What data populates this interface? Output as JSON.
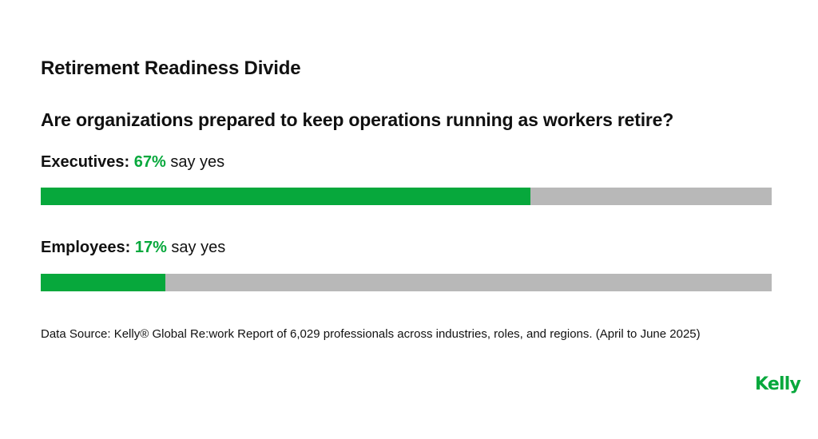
{
  "colors": {
    "accent": "#07a83c",
    "track": "#b8b8b8",
    "text": "#111111"
  },
  "logo": {
    "text": "Kelly"
  },
  "source": "Data Source: Kelly® Global Re:work Report of 6,029 professionals across industries, roles, and regions. (April to June 2025)",
  "chart_data": {
    "type": "bar",
    "orientation": "horizontal",
    "title": "Retirement Readiness Divide",
    "subtitle": "Are organizations prepared to keep operations running as workers retire?",
    "xlim": [
      0,
      100
    ],
    "grid": false,
    "categories": [
      "Executives",
      "Employees"
    ],
    "values": [
      67,
      17
    ],
    "rows": [
      {
        "group": "Executives:",
        "pct": "67%",
        "suffix": "say yes",
        "value": 67
      },
      {
        "group": "Employees:",
        "pct": "17%",
        "suffix": "say yes",
        "value": 17
      }
    ]
  }
}
